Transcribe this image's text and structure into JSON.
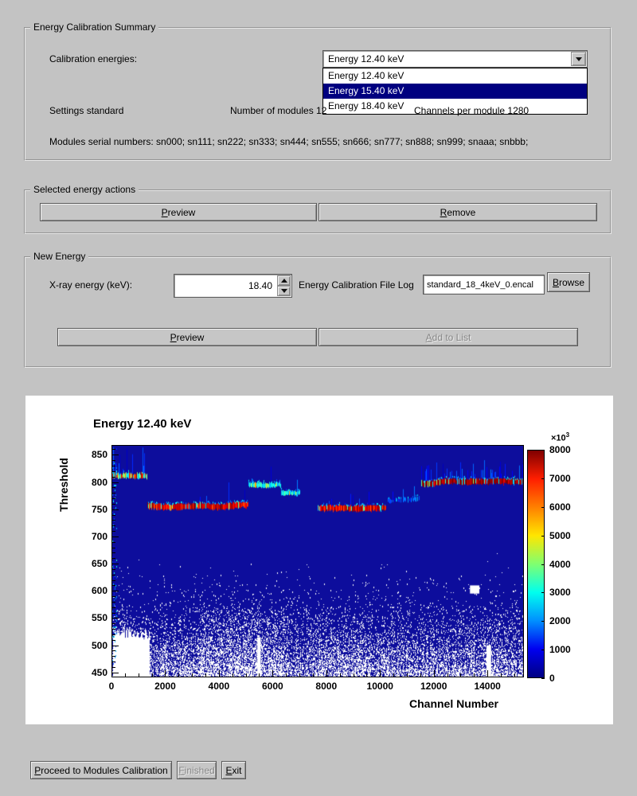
{
  "colors": {
    "window_background": "#c3c3c3",
    "selection": "#000080",
    "plot_background": "#ffffff"
  },
  "summary": {
    "title": "Energy Calibration Summary",
    "calibration_energies_label": "Calibration energies:",
    "combobox_value": "Energy 12.40 keV",
    "dropdown": {
      "items": [
        "Energy 12.40 keV",
        "Energy 15.40 keV",
        "Energy 18.40 keV"
      ],
      "selected_index": 1
    },
    "settings_label": "Settings standard",
    "modules_label": "Number of modules 12",
    "channels_label": "Channels per module 1280",
    "serials_label": "Modules serial numbers: sn000; sn111; sn222; sn333; sn444; sn555; sn666; sn777; sn888; sn999; snaaa; snbbb;"
  },
  "selected_actions": {
    "title": "Selected energy actions",
    "preview": {
      "label": "Preview",
      "mnemonic": "P"
    },
    "remove": {
      "label": "Remove",
      "mnemonic": "R"
    }
  },
  "new_energy": {
    "title": "New Energy",
    "xray_label": "X-ray energy (keV):",
    "energy_value": "18.40",
    "file_log_label": "Energy Calibration File Log",
    "file_value": "standard_18_4keV_0.encal",
    "browse": {
      "label": "Browse",
      "mnemonic": "B"
    },
    "preview": {
      "label": "Preview",
      "mnemonic": "P"
    },
    "add": {
      "label": "Add to List",
      "mnemonic": "A",
      "disabled": true
    }
  },
  "footer": {
    "proceed": {
      "label": "Proceed to Modules Calibration",
      "mnemonic": "P"
    },
    "finished": {
      "label": "Finished",
      "mnemonic": "F",
      "disabled": true
    },
    "exit": {
      "label": "Exit",
      "mnemonic": "E"
    }
  },
  "chart_data": {
    "type": "heatmap",
    "title": "Energy 12.40 keV",
    "xlabel": "Channel Number",
    "ylabel": "Threshold",
    "xlim": [
      0,
      15360
    ],
    "ylim": [
      441,
      868
    ],
    "x_ticks": [
      0,
      2000,
      4000,
      6000,
      8000,
      10000,
      12000,
      14000
    ],
    "y_ticks": [
      450,
      500,
      550,
      600,
      650,
      700,
      750,
      800,
      850
    ],
    "zero_color": "#0d0d9c",
    "colorbar": {
      "min": 0,
      "max": 8000,
      "ticks": [
        0,
        1000,
        2000,
        3000,
        4000,
        5000,
        6000,
        7000,
        8000
      ],
      "multiplier": "×10",
      "exponent": "3",
      "palette": [
        "#000082",
        "#0000f0",
        "#0090ff",
        "#00ffee",
        "#80ff70",
        "#ffe600",
        "#ff8000",
        "#ff1e00",
        "#7f0000"
      ]
    },
    "bands": [
      {
        "c0": 40,
        "c1": 1330,
        "t": 812,
        "style": "mixed",
        "spike_prob": 0.3,
        "spike_len": 30
      },
      {
        "c0": 1340,
        "c1": 5110,
        "t": 756,
        "style": "hot",
        "spike_prob": 0.07,
        "spike_len": 22
      },
      {
        "c0": 5110,
        "c1": 6330,
        "t": 796,
        "style": "cool",
        "spike_prob": 0.06,
        "spike_len": 16
      },
      {
        "c0": 6330,
        "c1": 7040,
        "t": 779,
        "style": "cool",
        "spike_prob": 0.05,
        "spike_len": 12
      },
      {
        "c0": 7690,
        "c1": 10230,
        "t": 751,
        "style": "hot",
        "spike_prob": 0.08,
        "spike_len": 20
      },
      {
        "c0": 10290,
        "c1": 11470,
        "t": 766,
        "style": "sparse",
        "spike_prob": 0.05,
        "spike_len": 10
      },
      {
        "c0": 11520,
        "c1": 15360,
        "t": 798,
        "style": "hot",
        "dark": true,
        "spike_prob": 0.22,
        "spike_len": 18
      }
    ],
    "noise_regions": [
      {
        "c0": 3250,
        "c1": 6500,
        "t0": 443,
        "t1": 565,
        "p": 0.22
      },
      {
        "c0": 7500,
        "c1": 10200,
        "t0": 443,
        "t1": 515,
        "p": 0.15
      },
      {
        "c0": 1500,
        "c1": 3250,
        "t0": 443,
        "t1": 500,
        "p": 0.12
      },
      {
        "c0": 10200,
        "c1": 15360,
        "t0": 443,
        "t1": 492,
        "p": 0.1
      }
    ],
    "white_regions": [
      {
        "c0": 60,
        "c1": 1430,
        "t0": 441,
        "t1": 527,
        "ragged": true
      }
    ],
    "white_blocks": [
      {
        "c0": 13350,
        "c1": 13700,
        "t0": 595,
        "t1": 610
      },
      {
        "c0": 13960,
        "c1": 14140,
        "t0": 441,
        "t1": 500
      },
      {
        "c0": 5430,
        "c1": 5560,
        "t0": 441,
        "t1": 515
      }
    ]
  }
}
